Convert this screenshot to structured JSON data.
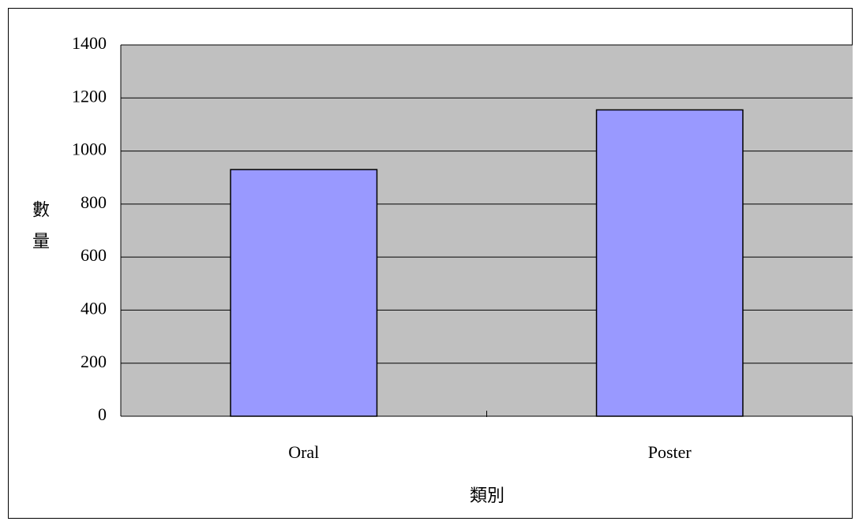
{
  "chart_data": {
    "type": "bar",
    "x_label": "類別",
    "y_label": "數量",
    "categories": [
      "Oral",
      "Poster"
    ],
    "values": [
      930,
      1155
    ],
    "color": "#9999ff",
    "ylim": [
      0,
      1400
    ],
    "yticks": [
      0,
      200,
      400,
      600,
      800,
      1000,
      1200,
      1400
    ],
    "grid": true
  }
}
